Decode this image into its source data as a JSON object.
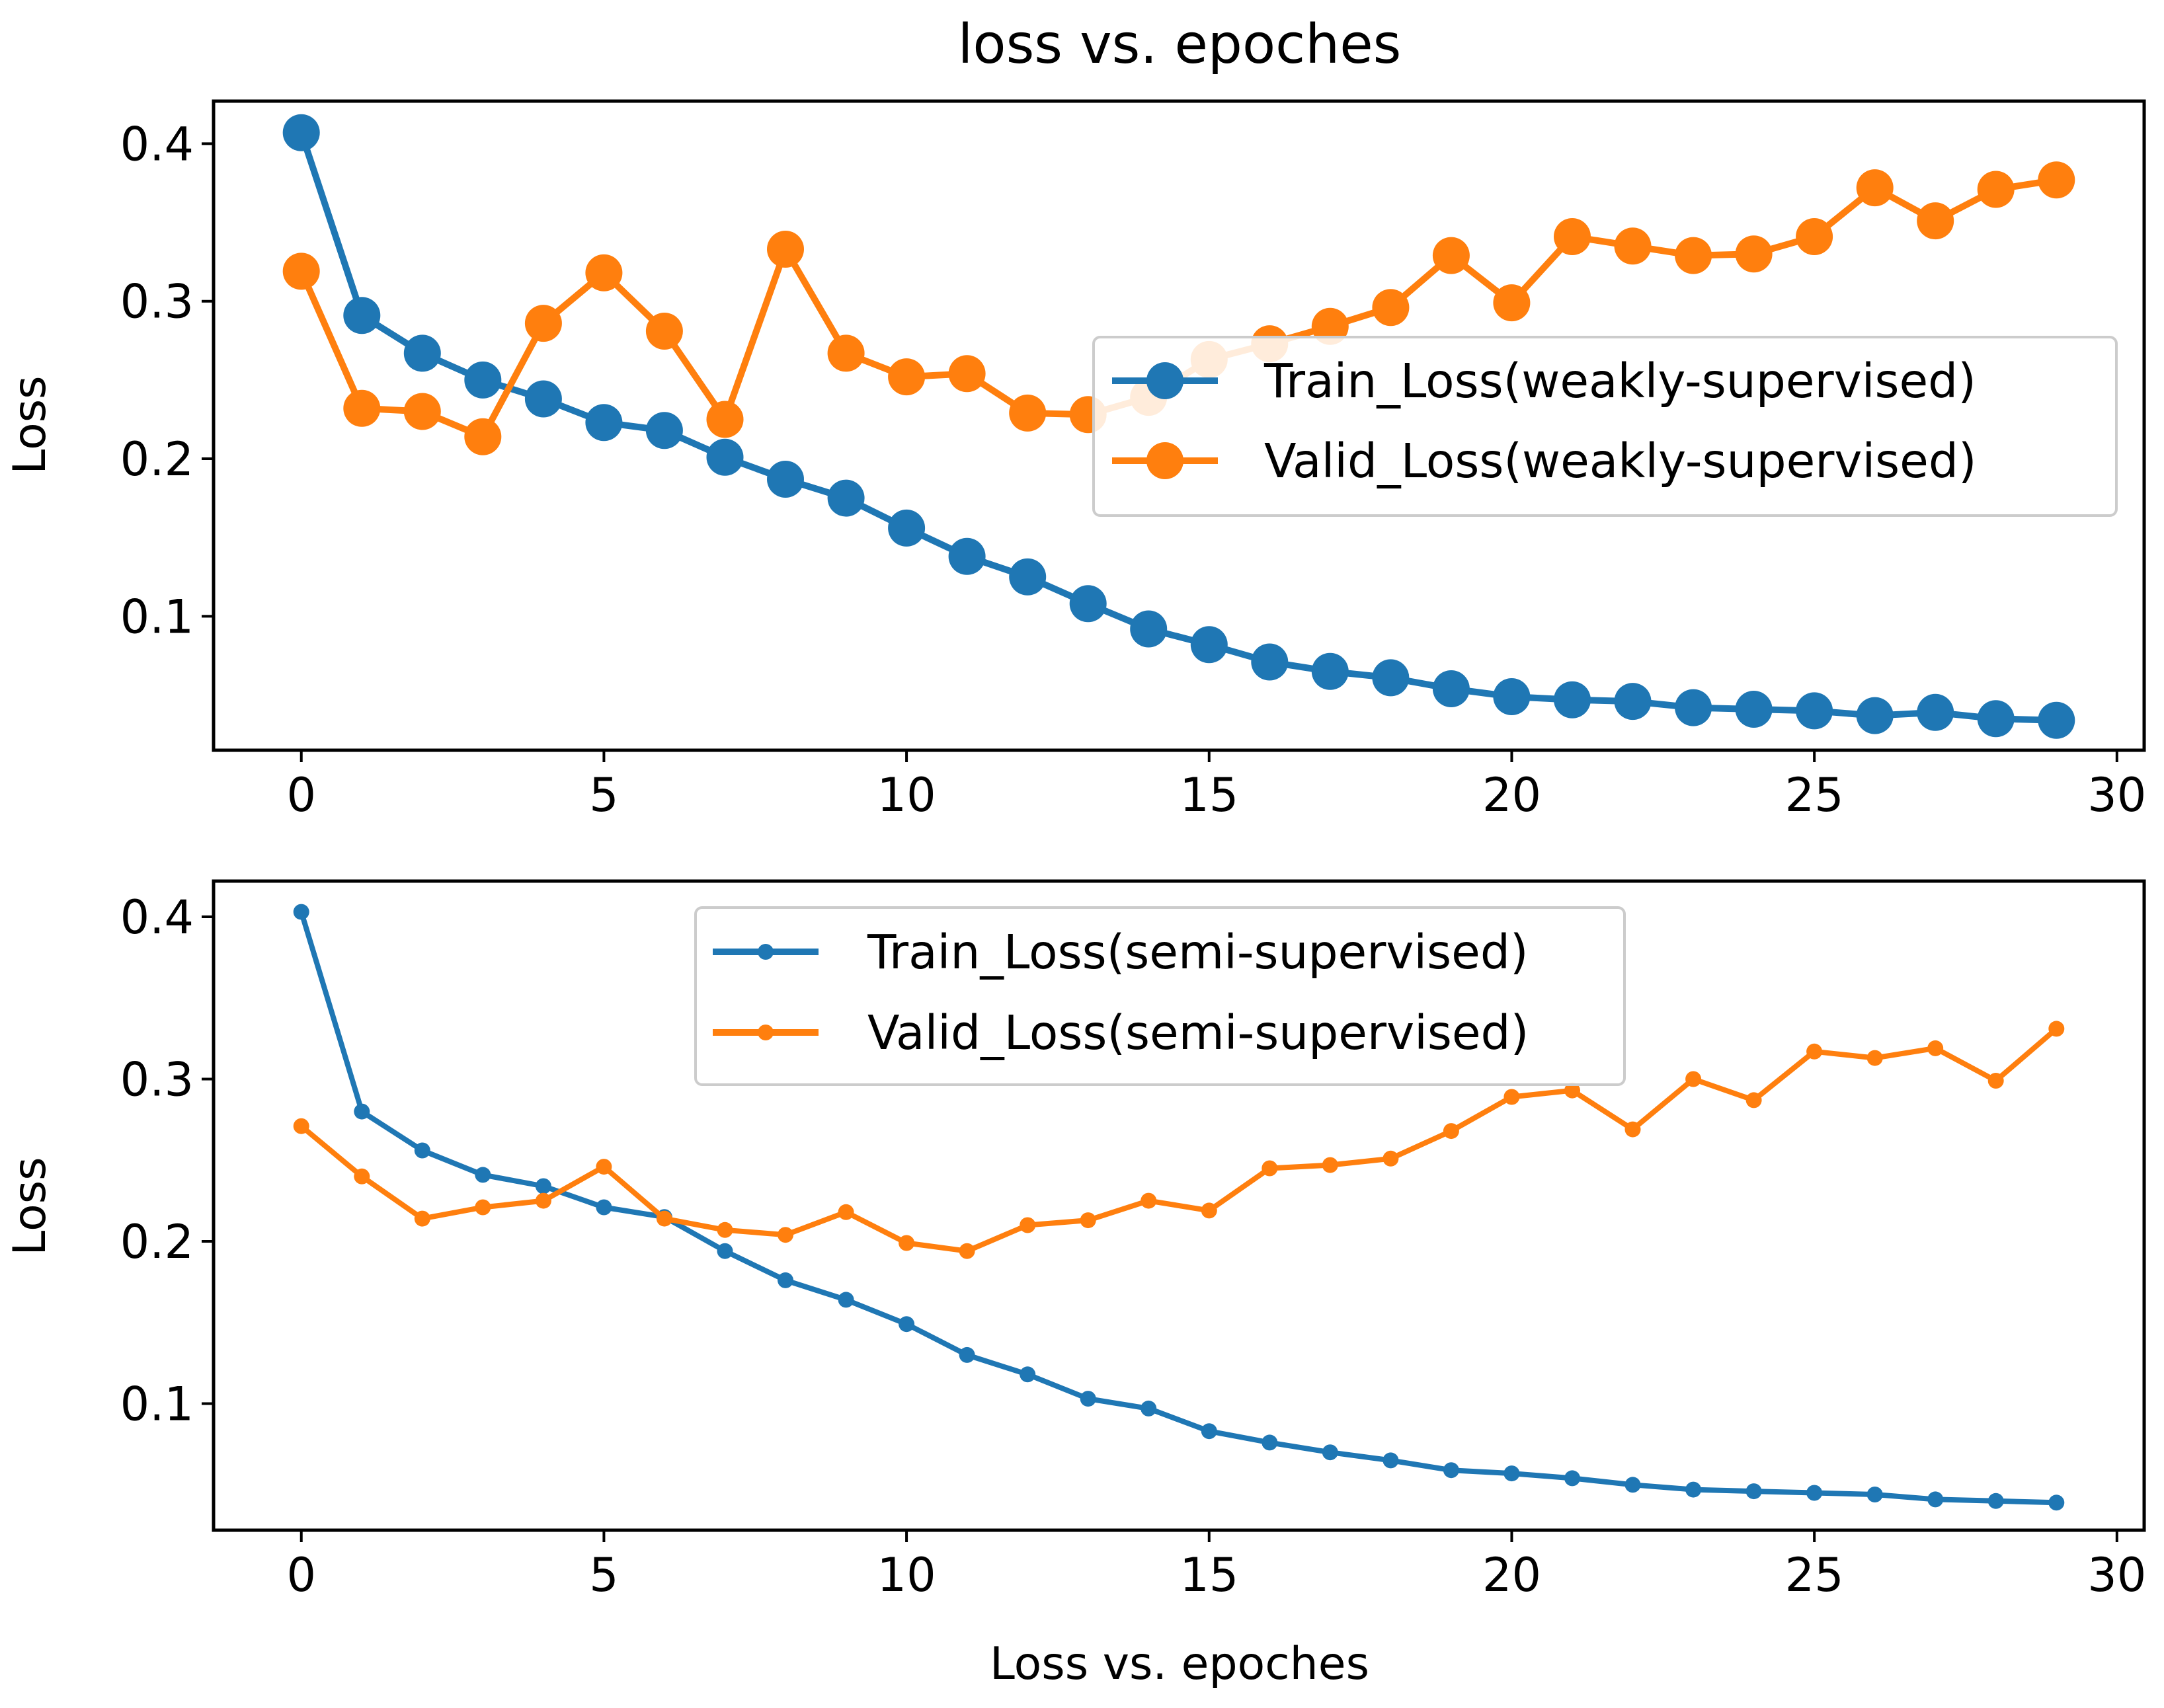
{
  "colors": {
    "train": "#1f77b4",
    "valid": "#ff7f0e",
    "axis": "#000000",
    "legend_border": "#cccccc"
  },
  "chart_data": [
    {
      "type": "line",
      "title": "loss vs. epoches",
      "xlabel": "",
      "ylabel": "Loss",
      "xlim": [
        -1.45,
        30.45
      ],
      "ylim": [
        0.015,
        0.427
      ],
      "xticks": [
        0,
        5,
        10,
        15,
        20,
        25,
        30
      ],
      "xtick_labels": [
        "0",
        "5",
        "10",
        "15",
        "20",
        "25",
        "30"
      ],
      "yticks": [
        0.1,
        0.2,
        0.3,
        0.4
      ],
      "ytick_labels": [
        "0.1",
        "0.2",
        "0.3",
        "0.4"
      ],
      "grid": false,
      "legend_location": "center-right",
      "marker": "large",
      "x": [
        0,
        1,
        2,
        3,
        4,
        5,
        6,
        7,
        8,
        9,
        10,
        11,
        12,
        13,
        14,
        15,
        16,
        17,
        18,
        19,
        20,
        21,
        22,
        23,
        24,
        25,
        26,
        27,
        28,
        29
      ],
      "series": [
        {
          "name": "Train_Loss(weakly-supervised)",
          "color": "#1f77b4",
          "values": [
            0.407,
            0.291,
            0.267,
            0.25,
            0.238,
            0.223,
            0.218,
            0.201,
            0.187,
            0.175,
            0.156,
            0.138,
            0.125,
            0.108,
            0.092,
            0.082,
            0.071,
            0.065,
            0.061,
            0.054,
            0.049,
            0.047,
            0.046,
            0.042,
            0.041,
            0.04,
            0.037,
            0.039,
            0.035,
            0.034
          ]
        },
        {
          "name": "Valid_Loss(weakly-supervised)",
          "color": "#ff7f0e",
          "values": [
            0.319,
            0.232,
            0.23,
            0.214,
            0.286,
            0.318,
            0.281,
            0.225,
            0.333,
            0.267,
            0.252,
            0.254,
            0.229,
            0.228,
            0.239,
            0.263,
            0.273,
            0.284,
            0.296,
            0.329,
            0.299,
            0.341,
            0.335,
            0.329,
            0.33,
            0.341,
            0.372,
            0.351,
            0.371,
            0.377
          ]
        }
      ]
    },
    {
      "type": "line",
      "title": "",
      "xlabel": "Loss vs. epoches",
      "ylabel": "Loss",
      "xlim": [
        -1.45,
        30.45
      ],
      "ylim": [
        0.022,
        0.422
      ],
      "xticks": [
        0,
        5,
        10,
        15,
        20,
        25,
        30
      ],
      "xtick_labels": [
        "0",
        "5",
        "10",
        "15",
        "20",
        "25",
        "30"
      ],
      "yticks": [
        0.1,
        0.2,
        0.3,
        0.4
      ],
      "ytick_labels": [
        "0.1",
        "0.2",
        "0.3",
        "0.4"
      ],
      "grid": false,
      "legend_location": "upper-center",
      "marker": "small",
      "x": [
        0,
        1,
        2,
        3,
        4,
        5,
        6,
        7,
        8,
        9,
        10,
        11,
        12,
        13,
        14,
        15,
        16,
        17,
        18,
        19,
        20,
        21,
        22,
        23,
        24,
        25,
        26,
        27,
        28,
        29
      ],
      "series": [
        {
          "name": "Train_Loss(semi-supervised)",
          "color": "#1f77b4",
          "values": [
            0.403,
            0.28,
            0.256,
            0.241,
            0.234,
            0.221,
            0.215,
            0.194,
            0.176,
            0.164,
            0.149,
            0.13,
            0.118,
            0.103,
            0.097,
            0.083,
            0.076,
            0.07,
            0.065,
            0.059,
            0.057,
            0.054,
            0.05,
            0.047,
            0.046,
            0.045,
            0.044,
            0.041,
            0.04,
            0.039
          ]
        },
        {
          "name": "Valid_Loss(semi-supervised)",
          "color": "#ff7f0e",
          "values": [
            0.271,
            0.24,
            0.214,
            0.221,
            0.225,
            0.246,
            0.214,
            0.207,
            0.204,
            0.218,
            0.199,
            0.194,
            0.21,
            0.213,
            0.225,
            0.219,
            0.245,
            0.247,
            0.251,
            0.268,
            0.289,
            0.293,
            0.269,
            0.3,
            0.287,
            0.317,
            0.313,
            0.319,
            0.299,
            0.331
          ]
        }
      ]
    }
  ]
}
